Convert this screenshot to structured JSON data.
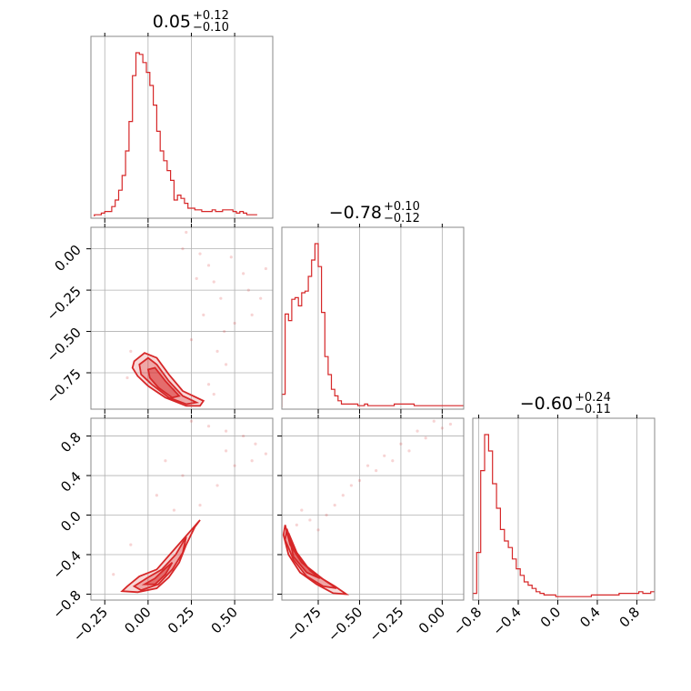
{
  "chart_data": {
    "type": "corner",
    "color": "#d62728",
    "parameters": [
      {
        "range": [
          -0.33,
          0.72
        ],
        "ticks": [
          -0.25,
          0.0,
          0.25,
          0.5
        ],
        "tick_labels": [
          "−0.25",
          "0.00",
          "0.25",
          "0.50"
        ],
        "title": {
          "median": "0.05",
          "plus": "+0.12",
          "minus": "−0.10"
        },
        "histogram": {
          "start": -0.31,
          "bin_width": 0.02,
          "counts": [
            1,
            1,
            2,
            3,
            3,
            6,
            10,
            16,
            25,
            40,
            58,
            86,
            100,
            99,
            94,
            88,
            80,
            68,
            52,
            40,
            34,
            28,
            22,
            10,
            13,
            11,
            8,
            5,
            5,
            4,
            4,
            3,
            3,
            3,
            4,
            3,
            3,
            4,
            4,
            4,
            3,
            2,
            3,
            2,
            1,
            1,
            1
          ]
        }
      },
      {
        "range": [
          -0.97,
          0.13
        ],
        "ticks": [
          -0.75,
          -0.5,
          -0.25,
          0.0
        ],
        "tick_labels": [
          "−0.75",
          "−0.50",
          "−0.25",
          "0.00"
        ],
        "title": {
          "median": "−0.78",
          "plus": "+0.10",
          "minus": "−0.12"
        },
        "histogram": {
          "start": -0.97,
          "bin_width": 0.02,
          "counts": [
            8,
            57,
            53,
            66,
            67,
            62,
            70,
            71,
            80,
            90,
            100,
            86,
            58,
            31,
            20,
            11,
            7,
            4,
            2,
            2,
            2,
            2,
            2,
            1,
            1,
            2,
            1,
            1,
            1,
            1,
            1,
            1,
            1,
            1,
            2,
            2,
            2,
            2,
            2,
            2,
            1,
            1,
            1,
            1,
            1,
            1,
            1,
            1,
            1,
            1,
            1,
            1,
            1,
            1,
            1
          ]
        }
      },
      {
        "range": [
          -0.86,
          0.98
        ],
        "ticks": [
          -0.8,
          -0.4,
          0.0,
          0.4,
          0.8
        ],
        "tick_labels": [
          "−0.8",
          "−0.4",
          "0.0",
          "0.4",
          "0.8"
        ],
        "title": {
          "median": "−0.60",
          "plus": "+0.24",
          "minus": "−0.11"
        },
        "histogram": {
          "start": -0.86,
          "bin_width": 0.04,
          "counts": [
            3,
            28,
            78,
            100,
            90,
            70,
            55,
            42,
            35,
            31,
            24,
            18,
            14,
            10,
            8,
            6,
            4,
            3,
            2,
            2,
            2,
            1,
            1,
            1,
            1,
            1,
            1,
            1,
            1,
            1,
            2,
            2,
            2,
            2,
            2,
            2,
            2,
            3,
            3,
            3,
            3,
            3,
            4,
            3,
            3,
            4,
            4
          ]
        }
      }
    ],
    "pairs": [
      {
        "x": 0,
        "y": 1,
        "contours": [
          [
            [
              -0.08,
              -0.68
            ],
            [
              -0.02,
              -0.63
            ],
            [
              0.05,
              -0.66
            ],
            [
              0.12,
              -0.76
            ],
            [
              0.2,
              -0.86
            ],
            [
              0.32,
              -0.92
            ],
            [
              0.3,
              -0.95
            ],
            [
              0.22,
              -0.95
            ],
            [
              0.1,
              -0.9
            ],
            [
              0.0,
              -0.83
            ],
            [
              -0.06,
              -0.77
            ],
            [
              -0.09,
              -0.72
            ]
          ],
          [
            [
              -0.05,
              -0.7
            ],
            [
              0.0,
              -0.66
            ],
            [
              0.05,
              -0.7
            ],
            [
              0.12,
              -0.8
            ],
            [
              0.2,
              -0.89
            ],
            [
              0.28,
              -0.93
            ],
            [
              0.22,
              -0.94
            ],
            [
              0.12,
              -0.9
            ],
            [
              0.02,
              -0.82
            ],
            [
              -0.04,
              -0.76
            ]
          ],
          [
            [
              0.0,
              -0.73
            ],
            [
              0.04,
              -0.72
            ],
            [
              0.1,
              -0.8
            ],
            [
              0.18,
              -0.89
            ],
            [
              0.14,
              -0.9
            ],
            [
              0.06,
              -0.84
            ],
            [
              0.01,
              -0.78
            ]
          ]
        ],
        "points": [
          [
            0.3,
            -0.03
          ],
          [
            0.35,
            -0.1
          ],
          [
            0.38,
            -0.2
          ],
          [
            0.42,
            -0.3
          ],
          [
            0.28,
            -0.18
          ],
          [
            0.55,
            -0.15
          ],
          [
            0.5,
            -0.45
          ],
          [
            0.4,
            -0.62
          ],
          [
            0.45,
            -0.7
          ],
          [
            0.25,
            -0.55
          ],
          [
            0.6,
            -0.4
          ],
          [
            0.65,
            -0.3
          ],
          [
            0.2,
            0.0
          ],
          [
            0.48,
            -0.05
          ],
          [
            0.35,
            -0.82
          ],
          [
            0.15,
            -0.85
          ],
          [
            -0.1,
            -0.62
          ],
          [
            -0.12,
            -0.78
          ],
          [
            0.32,
            -0.4
          ],
          [
            0.68,
            -0.12
          ],
          [
            0.22,
            0.1
          ],
          [
            0.58,
            -0.25
          ],
          [
            0.44,
            -0.5
          ],
          [
            0.38,
            -0.88
          ]
        ]
      },
      {
        "x": 0,
        "y": 2,
        "contours": [
          [
            [
              -0.12,
              -0.72
            ],
            [
              -0.05,
              -0.62
            ],
            [
              0.05,
              -0.55
            ],
            [
              0.15,
              -0.35
            ],
            [
              0.25,
              -0.15
            ],
            [
              0.3,
              -0.05
            ],
            [
              0.27,
              -0.12
            ],
            [
              0.22,
              -0.3
            ],
            [
              0.18,
              -0.48
            ],
            [
              0.12,
              -0.63
            ],
            [
              0.05,
              -0.74
            ],
            [
              -0.06,
              -0.78
            ],
            [
              -0.15,
              -0.77
            ]
          ],
          [
            [
              -0.08,
              -0.72
            ],
            [
              0.0,
              -0.63
            ],
            [
              0.08,
              -0.55
            ],
            [
              0.16,
              -0.4
            ],
            [
              0.22,
              -0.22
            ],
            [
              0.2,
              -0.38
            ],
            [
              0.14,
              -0.55
            ],
            [
              0.06,
              -0.7
            ],
            [
              -0.04,
              -0.76
            ]
          ],
          [
            [
              -0.02,
              -0.7
            ],
            [
              0.04,
              -0.64
            ],
            [
              0.1,
              -0.54
            ],
            [
              0.14,
              -0.48
            ],
            [
              0.1,
              -0.6
            ],
            [
              0.04,
              -0.7
            ]
          ]
        ],
        "points": [
          [
            0.35,
            0.9
          ],
          [
            0.45,
            0.85
          ],
          [
            0.55,
            0.8
          ],
          [
            0.62,
            0.72
          ],
          [
            0.68,
            0.62
          ],
          [
            0.4,
            0.3
          ],
          [
            0.3,
            0.1
          ],
          [
            0.05,
            0.2
          ],
          [
            0.5,
            0.5
          ],
          [
            0.25,
            0.95
          ],
          [
            0.6,
            0.55
          ],
          [
            -0.1,
            -0.3
          ],
          [
            0.15,
            0.05
          ],
          [
            0.2,
            0.4
          ],
          [
            0.1,
            0.55
          ],
          [
            -0.2,
            -0.6
          ],
          [
            0.45,
            0.65
          ]
        ]
      },
      {
        "x": 1,
        "y": 2,
        "contours": [
          [
            [
              -0.95,
              -0.1
            ],
            [
              -0.92,
              -0.3
            ],
            [
              -0.85,
              -0.48
            ],
            [
              -0.75,
              -0.62
            ],
            [
              -0.65,
              -0.72
            ],
            [
              -0.58,
              -0.8
            ],
            [
              -0.66,
              -0.79
            ],
            [
              -0.76,
              -0.7
            ],
            [
              -0.86,
              -0.58
            ],
            [
              -0.93,
              -0.4
            ],
            [
              -0.96,
              -0.2
            ]
          ],
          [
            [
              -0.94,
              -0.14
            ],
            [
              -0.9,
              -0.34
            ],
            [
              -0.82,
              -0.52
            ],
            [
              -0.72,
              -0.65
            ],
            [
              -0.64,
              -0.74
            ],
            [
              -0.72,
              -0.72
            ],
            [
              -0.82,
              -0.62
            ],
            [
              -0.9,
              -0.45
            ],
            [
              -0.95,
              -0.25
            ]
          ],
          [
            [
              -0.93,
              -0.18
            ],
            [
              -0.88,
              -0.38
            ],
            [
              -0.8,
              -0.56
            ],
            [
              -0.74,
              -0.64
            ],
            [
              -0.82,
              -0.58
            ],
            [
              -0.9,
              -0.42
            ]
          ]
        ],
        "points": [
          [
            -0.6,
            0.2
          ],
          [
            -0.5,
            0.35
          ],
          [
            -0.4,
            0.45
          ],
          [
            -0.3,
            0.55
          ],
          [
            -0.2,
            0.65
          ],
          [
            -0.1,
            0.78
          ],
          [
            0.0,
            0.88
          ],
          [
            0.05,
            0.92
          ],
          [
            -0.7,
            0.0
          ],
          [
            -0.8,
            -0.05
          ],
          [
            -0.55,
            0.3
          ],
          [
            -0.35,
            0.6
          ],
          [
            -0.25,
            0.72
          ],
          [
            -0.45,
            0.5
          ],
          [
            -0.65,
            0.1
          ],
          [
            -0.15,
            0.85
          ],
          [
            -0.05,
            0.95
          ],
          [
            -0.75,
            -0.15
          ],
          [
            -0.85,
            0.05
          ],
          [
            -0.88,
            -0.1
          ]
        ]
      }
    ],
    "grid": true
  }
}
